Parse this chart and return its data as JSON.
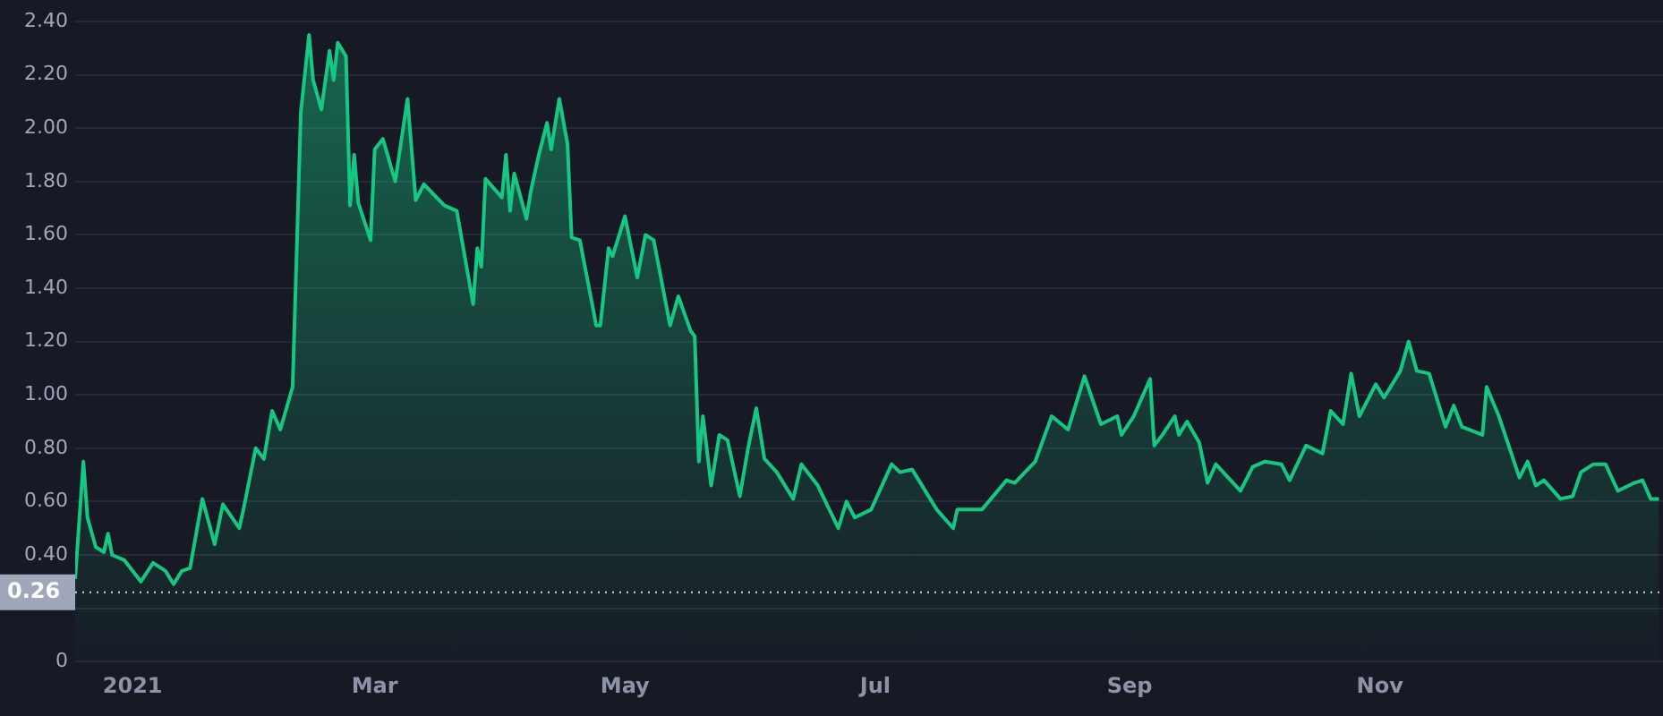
{
  "chart_data": {
    "type": "area",
    "x": [
      "2020-12-18",
      "2020-12-20",
      "2020-12-21",
      "2020-12-23",
      "2020-12-25",
      "2020-12-26",
      "2020-12-27",
      "2020-12-30",
      "2021-01-03",
      "2021-01-06",
      "2021-01-09",
      "2021-01-11",
      "2021-01-13",
      "2021-01-15",
      "2021-01-18",
      "2021-01-21",
      "2021-01-23",
      "2021-01-27",
      "2021-01-28",
      "2021-01-31",
      "2021-02-02",
      "2021-02-04",
      "2021-02-06",
      "2021-02-09",
      "2021-02-11",
      "2021-02-13",
      "2021-02-14",
      "2021-02-16",
      "2021-02-18",
      "2021-02-19",
      "2021-02-20",
      "2021-02-22",
      "2021-02-23",
      "2021-02-24",
      "2021-02-25",
      "2021-02-28",
      "2021-03-01",
      "2021-03-03",
      "2021-03-06",
      "2021-03-09",
      "2021-03-11",
      "2021-03-13",
      "2021-03-18",
      "2021-03-21",
      "2021-03-25",
      "2021-03-26",
      "2021-03-27",
      "2021-03-28",
      "2021-04-01",
      "2021-04-02",
      "2021-04-03",
      "2021-04-04",
      "2021-04-07",
      "2021-04-08",
      "2021-04-10",
      "2021-04-12",
      "2021-04-13",
      "2021-04-15",
      "2021-04-17",
      "2021-04-18",
      "2021-04-20",
      "2021-04-24",
      "2021-04-25",
      "2021-04-27",
      "2021-04-28",
      "2021-05-01",
      "2021-05-04",
      "2021-05-06",
      "2021-05-08",
      "2021-05-12",
      "2021-05-14",
      "2021-05-17",
      "2021-05-18",
      "2021-05-19",
      "2021-05-20",
      "2021-05-22",
      "2021-05-24",
      "2021-05-26",
      "2021-05-29",
      "2021-05-31",
      "2021-06-02",
      "2021-06-04",
      "2021-06-07",
      "2021-06-11",
      "2021-06-13",
      "2021-06-17",
      "2021-06-22",
      "2021-06-24",
      "2021-06-26",
      "2021-06-30",
      "2021-07-05",
      "2021-07-07",
      "2021-07-10",
      "2021-07-16",
      "2021-07-20",
      "2021-07-21",
      "2021-07-27",
      "2021-08-02",
      "2021-08-04",
      "2021-08-09",
      "2021-08-13",
      "2021-08-17",
      "2021-08-21",
      "2021-08-25",
      "2021-08-29",
      "2021-08-30",
      "2021-09-02",
      "2021-09-06",
      "2021-09-07",
      "2021-09-09",
      "2021-09-12",
      "2021-09-13",
      "2021-09-15",
      "2021-09-18",
      "2021-09-20",
      "2021-09-22",
      "2021-09-28",
      "2021-10-01",
      "2021-10-04",
      "2021-10-08",
      "2021-10-10",
      "2021-10-14",
      "2021-10-18",
      "2021-10-20",
      "2021-10-23",
      "2021-10-25",
      "2021-10-27",
      "2021-10-31",
      "2021-11-02",
      "2021-11-06",
      "2021-11-08",
      "2021-11-10",
      "2021-11-13",
      "2021-11-17",
      "2021-11-19",
      "2021-11-21",
      "2021-11-26",
      "2021-11-27",
      "2021-11-30",
      "2021-12-05",
      "2021-12-07",
      "2021-12-09",
      "2021-12-11",
      "2021-12-15",
      "2021-12-18",
      "2021-12-20",
      "2021-12-23",
      "2021-12-26",
      "2021-12-29",
      "2022-01-02",
      "2022-01-04",
      "2022-01-06",
      "2022-01-08"
    ],
    "series": [
      {
        "color": "#16c784",
        "values": [
          0.31,
          0.75,
          0.54,
          0.43,
          0.41,
          0.48,
          0.4,
          0.38,
          0.3,
          0.37,
          0.34,
          0.29,
          0.34,
          0.35,
          0.61,
          0.44,
          0.59,
          0.5,
          0.57,
          0.8,
          0.76,
          0.94,
          0.87,
          1.03,
          2.06,
          2.35,
          2.18,
          2.07,
          2.29,
          2.18,
          2.32,
          2.27,
          1.71,
          1.9,
          1.72,
          1.58,
          1.92,
          1.96,
          1.8,
          2.11,
          1.73,
          1.79,
          1.71,
          1.69,
          1.34,
          1.55,
          1.48,
          1.81,
          1.74,
          1.9,
          1.69,
          1.83,
          1.66,
          1.76,
          1.9,
          2.02,
          1.92,
          2.11,
          1.94,
          1.59,
          1.58,
          1.26,
          1.26,
          1.55,
          1.52,
          1.67,
          1.44,
          1.6,
          1.58,
          1.26,
          1.37,
          1.24,
          1.22,
          0.75,
          0.92,
          0.66,
          0.85,
          0.83,
          0.62,
          0.8,
          0.95,
          0.76,
          0.71,
          0.61,
          0.74,
          0.66,
          0.5,
          0.6,
          0.54,
          0.57,
          0.74,
          0.71,
          0.72,
          0.57,
          0.5,
          0.57,
          0.57,
          0.68,
          0.67,
          0.75,
          0.92,
          0.87,
          1.07,
          0.89,
          0.92,
          0.85,
          0.92,
          1.06,
          0.81,
          0.85,
          0.92,
          0.85,
          0.9,
          0.82,
          0.67,
          0.74,
          0.64,
          0.73,
          0.75,
          0.74,
          0.68,
          0.81,
          0.78,
          0.94,
          0.89,
          1.08,
          0.92,
          1.04,
          0.99,
          1.09,
          1.2,
          1.09,
          1.08,
          0.88,
          0.96,
          0.88,
          0.85,
          1.03,
          0.92,
          0.69,
          0.75,
          0.66,
          0.68,
          0.61,
          0.62,
          0.71,
          0.74,
          0.74,
          0.64,
          0.67,
          0.68,
          0.61,
          0.61
        ]
      }
    ],
    "xlim": [
      "2020-12-18",
      "2022-01-09"
    ],
    "xticks": [
      {
        "value": "2021-01-01",
        "label": "2021"
      },
      {
        "value": "2021-03-01",
        "label": "Mar"
      },
      {
        "value": "2021-05-01",
        "label": "May"
      },
      {
        "value": "2021-07-01",
        "label": "Jul"
      },
      {
        "value": "2021-09-01",
        "label": "Sep"
      },
      {
        "value": "2021-11-01",
        "label": "Nov"
      }
    ],
    "ylim": [
      0,
      2.4
    ],
    "yticks": [
      0,
      {
        "value": 0.2,
        "label": null
      },
      {
        "value": 0.4,
        "label": "0.40"
      },
      {
        "value": 0.6,
        "label": "0.60"
      },
      {
        "value": 0.8,
        "label": "0.80"
      },
      {
        "value": 1,
        "label": "1.00"
      },
      {
        "value": 1.2,
        "label": "1.20"
      },
      {
        "value": 1.4,
        "label": "1.40"
      },
      {
        "value": 1.6,
        "label": "1.60"
      },
      {
        "value": 1.8,
        "label": "1.80"
      },
      {
        "value": 2,
        "label": "2.00"
      },
      {
        "value": 2.2,
        "label": "2.20"
      },
      {
        "value": 2.4,
        "label": "2.40"
      }
    ],
    "ref_lines": [
      {
        "axis": "y",
        "value": 0.26,
        "label": "0.26",
        "color": "#cfd6e4",
        "line_style": "dotted"
      }
    ],
    "grid": "y",
    "marker": "none",
    "line_style": "solid"
  }
}
